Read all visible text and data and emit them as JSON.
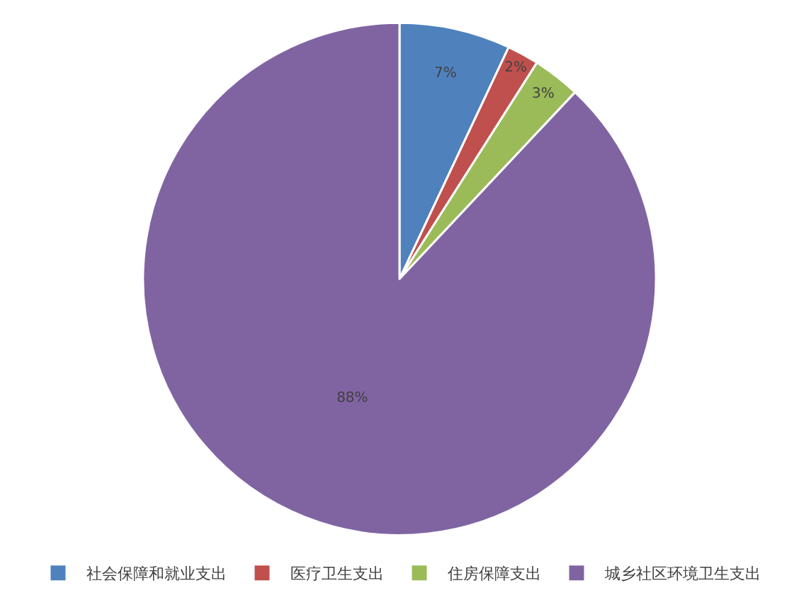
{
  "chart_data": {
    "type": "pie",
    "categories": [
      "社会保障和就业支出",
      "医疗卫生支出",
      "住房保障支出",
      "城乡社区环境卫生支出"
    ],
    "values": [
      7,
      2,
      3,
      88
    ],
    "colors": [
      "#4f81bd",
      "#c0504d",
      "#9bbb59",
      "#8064a2"
    ],
    "value_labels": [
      "7%",
      "2%",
      "3%",
      "88%"
    ],
    "legend": "bottom"
  }
}
